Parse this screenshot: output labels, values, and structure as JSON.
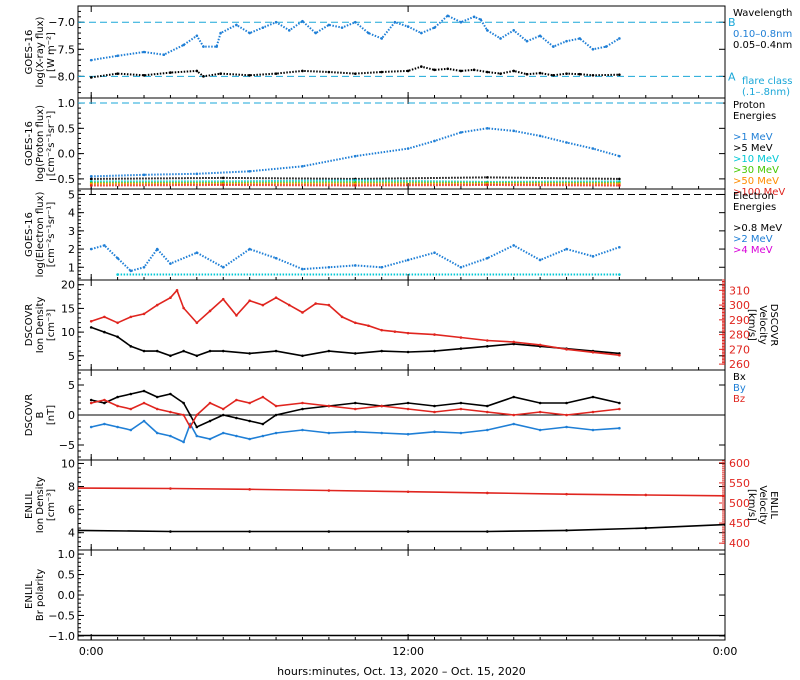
{
  "xaxis": {
    "label": "hours:minutes, Oct. 13, 2020 – Oct. 15, 2020",
    "range_hours": [
      -1,
      48
    ],
    "ticks": [
      {
        "hour": 0,
        "label": "0:00"
      },
      {
        "hour": 24,
        "label": "12:00"
      },
      {
        "hour": 48,
        "label": "0:00"
      }
    ]
  },
  "colors": {
    "axis": "#000000",
    "blue": "#1f7fd6",
    "black": "#000000",
    "red": "#e0251f",
    "cyan": "#00c8d6",
    "green": "#46c800",
    "orange": "#ff8c00",
    "magenta": "#d800d8",
    "dashblue": "#1aa7d8"
  },
  "chart_data": [
    {
      "id": "xray",
      "type": "scatter",
      "ylabel": [
        "GOES-16",
        "log(X-ray flux)",
        "[W m⁻²]"
      ],
      "ylim": [
        -8.4,
        -6.7
      ],
      "yticks": [
        -8.0,
        -7.5,
        -7.0
      ],
      "ytick_labels": [
        "−8.0",
        "−7.5",
        "−7.0"
      ],
      "reference_lines": [
        {
          "y": -7.0,
          "label": "B",
          "style": "dashed",
          "color": "#1aa7d8"
        },
        {
          "y": -8.0,
          "label": "A",
          "style": "dashed",
          "color": "#1aa7d8"
        }
      ],
      "legend": {
        "title": [
          "Wavelength"
        ],
        "entries": [
          {
            "label": "0.10–0.8nm",
            "color": "#1f7fd6"
          },
          {
            "label": "0.05–0.4nm",
            "color": "#000000"
          }
        ],
        "note": [
          "flare class",
          "(.1–.8nm)"
        ]
      },
      "series": [
        {
          "color": "#1f7fd6",
          "x": [
            0,
            2,
            4,
            5.5,
            7,
            8,
            8.5,
            9.5,
            9.8,
            11,
            12,
            13,
            14,
            15,
            16,
            17,
            18,
            19,
            20,
            21,
            22,
            23,
            24,
            25,
            26,
            27,
            28,
            29,
            29.5,
            30,
            31,
            32,
            33,
            34,
            35,
            36,
            37,
            38,
            39,
            40
          ],
          "y": [
            -7.7,
            -7.62,
            -7.55,
            -7.6,
            -7.42,
            -7.25,
            -7.45,
            -7.45,
            -7.2,
            -7.05,
            -7.2,
            -7.1,
            -7.0,
            -7.15,
            -6.98,
            -7.2,
            -7.05,
            -7.1,
            -7.0,
            -7.2,
            -7.3,
            -7.0,
            -7.08,
            -7.2,
            -7.1,
            -6.88,
            -7.0,
            -6.9,
            -6.95,
            -7.15,
            -7.3,
            -7.15,
            -7.35,
            -7.25,
            -7.45,
            -7.35,
            -7.3,
            -7.5,
            -7.45,
            -7.3
          ]
        },
        {
          "color": "#000000",
          "x": [
            0,
            2,
            4,
            6,
            8,
            8.5,
            9.8,
            12,
            14,
            16,
            18,
            20,
            22,
            24,
            25,
            26,
            27,
            28,
            29,
            30,
            31,
            32,
            33,
            34,
            35,
            36,
            37,
            38,
            40
          ],
          "y": [
            -8.02,
            -7.95,
            -7.98,
            -7.93,
            -7.9,
            -8.0,
            -7.95,
            -7.98,
            -7.95,
            -7.9,
            -7.92,
            -7.95,
            -7.92,
            -7.9,
            -7.82,
            -7.88,
            -7.86,
            -7.9,
            -7.88,
            -7.92,
            -7.95,
            -7.9,
            -7.96,
            -7.94,
            -7.98,
            -7.95,
            -7.96,
            -7.98,
            -7.97
          ]
        }
      ]
    },
    {
      "id": "proton",
      "type": "scatter",
      "ylabel": [
        "GOES-16",
        "log(Proton flux)",
        "[cm⁻²s⁻¹sr⁻¹]"
      ],
      "ylim": [
        -0.7,
        1.1
      ],
      "yticks": [
        -0.5,
        0.0,
        0.5,
        1.0
      ],
      "ytick_labels": [
        "−0.5",
        "0.0",
        "0.5",
        "1.0"
      ],
      "reference_lines": [
        {
          "y": 1.0,
          "style": "dashed",
          "color": "#1aa7d8"
        }
      ],
      "legend": {
        "title": [
          "Proton",
          "Energies"
        ],
        "entries": [
          {
            "label": ">1 MeV",
            "color": "#1f7fd6"
          },
          {
            "label": ">5 MeV",
            "color": "#000000"
          },
          {
            "label": ">10 MeV",
            "color": "#00c8d6"
          },
          {
            "label": ">30 MeV",
            "color": "#46c800"
          },
          {
            "label": ">50 MeV",
            "color": "#ff8c00"
          },
          {
            "label": ">100 MeV",
            "color": "#e0251f"
          }
        ]
      },
      "series": [
        {
          "color": "#1f7fd6",
          "x": [
            0,
            4,
            8,
            12,
            16,
            20,
            24,
            26,
            28,
            30,
            32,
            34,
            36,
            38,
            40
          ],
          "y": [
            -0.45,
            -0.42,
            -0.4,
            -0.35,
            -0.25,
            -0.05,
            0.1,
            0.25,
            0.42,
            0.5,
            0.45,
            0.35,
            0.22,
            0.1,
            -0.05
          ]
        },
        {
          "color": "#000000",
          "x": [
            0,
            10,
            20,
            30,
            40
          ],
          "y": [
            -0.5,
            -0.48,
            -0.5,
            -0.47,
            -0.5
          ]
        },
        {
          "color": "#00c8d6",
          "x": [
            0,
            10,
            20,
            30,
            40
          ],
          "y": [
            -0.55,
            -0.55,
            -0.53,
            -0.56,
            -0.55
          ]
        },
        {
          "color": "#46c800",
          "x": [
            0,
            10,
            20,
            30,
            40
          ],
          "y": [
            -0.58,
            -0.58,
            -0.57,
            -0.58,
            -0.58
          ]
        },
        {
          "color": "#ff8c00",
          "x": [
            0,
            10,
            20,
            30,
            40
          ],
          "y": [
            -0.6,
            -0.6,
            -0.6,
            -0.6,
            -0.6
          ]
        },
        {
          "color": "#e0251f",
          "x": [
            0,
            10,
            20,
            30,
            40
          ],
          "y": [
            -0.63,
            -0.62,
            -0.63,
            -0.62,
            -0.63
          ]
        }
      ]
    },
    {
      "id": "electron",
      "type": "scatter",
      "ylabel": [
        "GOES-16",
        "log(Electron flux)",
        "[cm⁻²s⁻¹sr⁻¹]"
      ],
      "ylim": [
        0.3,
        5.3
      ],
      "yticks": [
        1,
        2,
        3,
        4,
        5
      ],
      "ytick_labels": [
        "1",
        "2",
        "3",
        "4",
        "5"
      ],
      "reference_lines": [
        {
          "y": 5.0,
          "style": "dashed",
          "color": "#000000"
        }
      ],
      "legend": {
        "title": [
          "Electron",
          "Energies"
        ],
        "entries": [
          {
            "label": ">0.8 MeV",
            "color": "#000000"
          },
          {
            "label": ">2 MeV",
            "color": "#1f7fd6"
          },
          {
            "label": ">4 MeV",
            "color": "#d800d8"
          }
        ]
      },
      "series": [
        {
          "color": "#1f7fd6",
          "x": [
            0,
            1,
            2,
            3,
            4,
            5,
            6,
            8,
            10,
            12,
            14,
            16,
            18,
            20,
            22,
            24,
            26,
            28,
            30,
            32,
            34,
            36,
            38,
            40
          ],
          "y": [
            2.0,
            2.2,
            1.5,
            0.8,
            1.0,
            2.0,
            1.2,
            1.8,
            1.0,
            2.0,
            1.5,
            0.9,
            1.0,
            1.1,
            1.0,
            1.4,
            1.8,
            1.0,
            1.5,
            2.2,
            1.4,
            2.0,
            1.6,
            2.1
          ]
        },
        {
          "color": "#00c8d6",
          "x": [
            2,
            40
          ],
          "y": [
            0.6,
            0.6
          ]
        }
      ]
    },
    {
      "id": "dscovr_density",
      "type": "line",
      "ylabel": [
        "DSCOVR",
        "Ion Density",
        "[cm⁻³]"
      ],
      "ylim": [
        2,
        21
      ],
      "yticks": [
        5,
        10,
        15,
        20
      ],
      "ytick_labels": [
        "5",
        "10",
        "15",
        "20"
      ],
      "right_axis": {
        "ylabel": [
          "DSCOVR",
          "Velocity",
          "[km/s]"
        ],
        "ylim": [
          256,
          317
        ],
        "yticks": [
          260,
          270,
          280,
          290,
          300,
          310
        ],
        "ytick_labels": [
          "260",
          "270",
          "280",
          "290",
          "300",
          "310"
        ],
        "color": "#e0251f"
      },
      "series": [
        {
          "axis": "left",
          "color": "#000000",
          "x": [
            0,
            1,
            2,
            3,
            4,
            5,
            6,
            7,
            8,
            9,
            10,
            12,
            14,
            16,
            18,
            20,
            22,
            24,
            26,
            28,
            30,
            32,
            34,
            36,
            38,
            40
          ],
          "y": [
            11,
            10,
            9,
            7,
            6,
            6,
            5,
            6,
            5,
            6,
            6,
            5.5,
            6,
            5,
            6,
            5.5,
            6,
            5.8,
            6,
            6.5,
            7,
            7.5,
            7,
            6.5,
            6,
            5.5
          ]
        },
        {
          "axis": "right",
          "color": "#e0251f",
          "x": [
            0,
            1,
            2,
            3,
            4,
            5,
            6,
            6.5,
            7,
            8,
            9,
            10,
            11,
            12,
            13,
            14,
            15,
            16,
            17,
            18,
            19,
            20,
            21,
            22,
            23,
            24,
            26,
            28,
            30,
            32,
            34,
            36,
            38,
            40
          ],
          "y": [
            289,
            292,
            288,
            292,
            294,
            300,
            305,
            310,
            298,
            288,
            296,
            304,
            293,
            303,
            300,
            305,
            300,
            295,
            301,
            300,
            292,
            288,
            286,
            283,
            282,
            281,
            280,
            278,
            276,
            275,
            273,
            270,
            268,
            266
          ]
        }
      ]
    },
    {
      "id": "dscovr_b",
      "type": "line",
      "ylabel": [
        "DSCOVR",
        "B",
        "[nT]"
      ],
      "ylim": [
        -7.5,
        7.5
      ],
      "yticks": [
        -5,
        0,
        5
      ],
      "ytick_labels": [
        "−5",
        "0",
        "5"
      ],
      "zero_line": true,
      "legend": {
        "entries": [
          {
            "label": "Bx",
            "color": "#000000"
          },
          {
            "label": "By",
            "color": "#1f7fd6"
          },
          {
            "label": "Bz",
            "color": "#e0251f"
          }
        ]
      },
      "series": [
        {
          "color": "#000000",
          "x": [
            0,
            1,
            2,
            3,
            4,
            5,
            6,
            7,
            7.5,
            8,
            9,
            10,
            11,
            12,
            13,
            14,
            16,
            18,
            20,
            22,
            24,
            26,
            28,
            30,
            32,
            34,
            36,
            38,
            40
          ],
          "y": [
            2.5,
            2,
            3,
            3.5,
            4,
            3,
            3.5,
            2,
            0,
            -2,
            -1,
            0,
            -0.5,
            -1,
            -1.5,
            0,
            1,
            1.5,
            2,
            1.5,
            2,
            1.5,
            2,
            1.5,
            3,
            2,
            2,
            3,
            2
          ]
        },
        {
          "color": "#1f7fd6",
          "x": [
            0,
            1,
            2,
            3,
            4,
            5,
            6,
            7,
            7.5,
            8,
            9,
            10,
            11,
            12,
            13,
            14,
            16,
            18,
            20,
            22,
            24,
            26,
            28,
            30,
            32,
            34,
            36,
            38,
            40
          ],
          "y": [
            -2,
            -1.5,
            -2,
            -2.5,
            -1,
            -3,
            -3.5,
            -4.5,
            -1.5,
            -3.5,
            -4,
            -3,
            -3.5,
            -4,
            -3.5,
            -3,
            -2.5,
            -3,
            -2.8,
            -3,
            -3.2,
            -2.8,
            -3,
            -2.5,
            -1.5,
            -2.5,
            -2,
            -2.5,
            -2.2
          ]
        },
        {
          "color": "#e0251f",
          "x": [
            0,
            1,
            2,
            3,
            4,
            5,
            6,
            7,
            7.5,
            8,
            9,
            10,
            11,
            12,
            13,
            14,
            16,
            18,
            20,
            22,
            24,
            26,
            28,
            30,
            32,
            34,
            36,
            38,
            40
          ],
          "y": [
            2,
            2.5,
            1.5,
            1,
            2,
            1,
            0.5,
            0,
            -2,
            0,
            2,
            1,
            2.5,
            2,
            3,
            1.5,
            2,
            1.5,
            1,
            1.5,
            1,
            0.5,
            1,
            0.5,
            0,
            0.5,
            0,
            0.5,
            1
          ]
        }
      ]
    },
    {
      "id": "enlil_density",
      "type": "line",
      "ylabel": [
        "ENLIL",
        "Ion Density",
        "[cm⁻³]"
      ],
      "ylim": [
        2.5,
        10.3
      ],
      "yticks": [
        4,
        6,
        8,
        10
      ],
      "ytick_labels": [
        "4",
        "6",
        "8",
        "10"
      ],
      "right_axis": {
        "ylabel": [
          "ENLIL",
          "Velocity",
          "[km/s]"
        ],
        "ylim": [
          383,
          607
        ],
        "yticks": [
          400,
          450,
          500,
          550,
          600
        ],
        "ytick_labels": [
          "400",
          "450",
          "500",
          "550",
          "600"
        ],
        "color": "#e0251f"
      },
      "series": [
        {
          "axis": "left",
          "color": "#000000",
          "x": [
            -1,
            6,
            12,
            18,
            24,
            30,
            36,
            42,
            48
          ],
          "y": [
            4.2,
            4.1,
            4.1,
            4.1,
            4.1,
            4.1,
            4.2,
            4.4,
            4.7
          ]
        },
        {
          "axis": "right",
          "color": "#e0251f",
          "x": [
            -1,
            6,
            12,
            18,
            24,
            30,
            36,
            42,
            48
          ],
          "y": [
            537,
            536,
            534,
            531,
            528,
            525,
            522,
            520,
            518
          ]
        }
      ]
    },
    {
      "id": "enlil_polarity",
      "type": "line",
      "ylabel": [
        "ENLIL",
        "Br polarity"
      ],
      "ylim": [
        -1.1,
        1.1
      ],
      "yticks": [
        -1.0,
        -0.5,
        0.0,
        0.5,
        1.0
      ],
      "ytick_labels": [
        "−1.0",
        "−0.5",
        "0.0",
        "0.5",
        "1.0"
      ],
      "series": [
        {
          "color": "#000000",
          "x": [
            -1,
            48
          ],
          "y": [
            -0.99,
            -0.99
          ]
        }
      ]
    }
  ]
}
